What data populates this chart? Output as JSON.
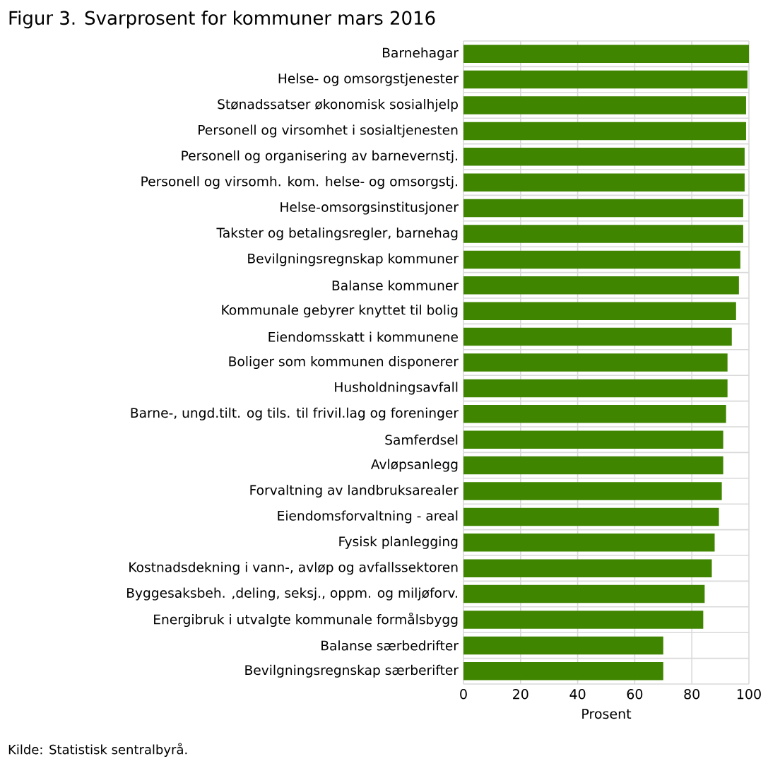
{
  "chart_data": {
    "type": "bar",
    "orientation": "horizontal",
    "title": "Figur 3. Svarprosent for kommuner mars 2016",
    "xlabel": "Prosent",
    "categories": [
      "Barnehagar",
      "Helse- og omsorgstjenester",
      "Stønadssatser økonomisk sosialhjelp",
      "Personell og virsomhet i sosialtjenesten",
      "Personell og organisering av barnevernstj.",
      "Personell og virsomh. kom. helse- og omsorgstj.",
      "Helse-omsorgsinstitusjoner",
      "Takster og betalingsregler, barnehag",
      "Bevilgningsregnskap kommuner",
      "Balanse kommuner",
      "Kommunale gebyrer knyttet til bolig",
      "Eiendomsskatt i kommunene",
      "Boliger som kommunen disponerer",
      "Husholdningsavfall",
      "Barne-, ungd.tilt. og tils. til frivil.lag og foreninger",
      "Samferdsel",
      "Avløpsanlegg",
      "Forvaltning av landbruksarealer",
      "Eiendomsforvaltning - areal",
      "Fysisk planlegging",
      "Kostnadsdekning i vann-, avløp og avfallssektoren",
      "Byggesaksbeh. ,deling, seksj., oppm. og miljøforv.",
      "Energibruk i utvalgte kommunale formålsbygg",
      "Balanse særbedrifter",
      "Bevilgningsregnskap særberifter"
    ],
    "values": [
      100,
      99.5,
      99,
      99,
      98.5,
      98.5,
      98,
      98,
      97,
      96.5,
      95.5,
      94,
      92.5,
      92.5,
      92,
      91,
      91,
      90.5,
      89.5,
      88,
      87,
      84.5,
      84,
      70,
      70
    ],
    "color": "#3f8500",
    "xlim": [
      0,
      100
    ],
    "xticks": [
      0,
      20,
      40,
      60,
      80,
      100
    ],
    "grid": true,
    "annotations": [
      "Kilde: Statistisk sentralbyrå."
    ]
  }
}
